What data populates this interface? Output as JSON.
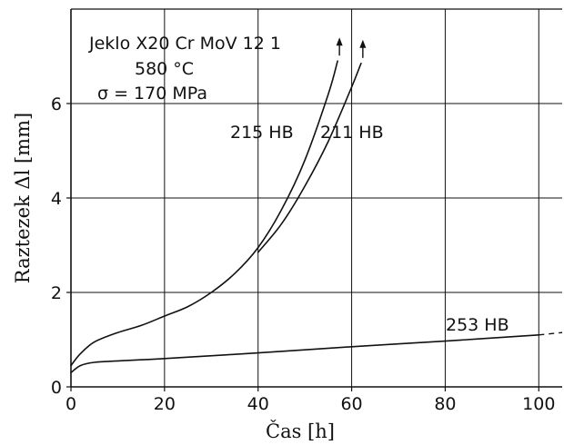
{
  "chart_data": {
    "type": "line",
    "xlabel": "Čas [h]",
    "ylabel": "Raztezek Δl [mm]",
    "xlim": [
      0,
      105
    ],
    "ylim": [
      0,
      8
    ],
    "x_ticks": [
      0,
      20,
      40,
      60,
      80,
      100
    ],
    "y_ticks": [
      0,
      2,
      4,
      6
    ],
    "x_tick_labels": [
      "0",
      "20",
      "40",
      "60",
      "80",
      "100"
    ],
    "y_tick_labels": [
      "0",
      "2",
      "4",
      "6"
    ],
    "grid": true,
    "annotation_lines": [
      "Jeklo X20 Cr MoV 12 1",
      "580 °C",
      "σ = 170 MPa"
    ],
    "series": [
      {
        "name": "215 HB",
        "x": [
          0,
          2,
          5,
          10,
          15,
          20,
          25,
          30,
          35,
          40,
          45,
          50,
          55,
          57
        ],
        "y": [
          0.45,
          0.7,
          0.95,
          1.15,
          1.3,
          1.5,
          1.7,
          2.0,
          2.4,
          2.95,
          3.75,
          4.8,
          6.2,
          6.9
        ],
        "continues_beyond": true
      },
      {
        "name": "211 HB",
        "x": [
          40,
          45,
          50,
          55,
          60,
          62
        ],
        "y": [
          2.85,
          3.45,
          4.25,
          5.2,
          6.35,
          6.85
        ],
        "continues_beyond": true
      },
      {
        "name": "253 HB",
        "x": [
          0,
          2,
          5,
          10,
          20,
          40,
          60,
          80,
          100
        ],
        "y": [
          0.3,
          0.45,
          0.52,
          0.55,
          0.6,
          0.72,
          0.85,
          0.97,
          1.1
        ],
        "dashed_extension": [
          [
            100,
            1.1
          ],
          [
            105,
            1.15
          ]
        ]
      }
    ]
  }
}
